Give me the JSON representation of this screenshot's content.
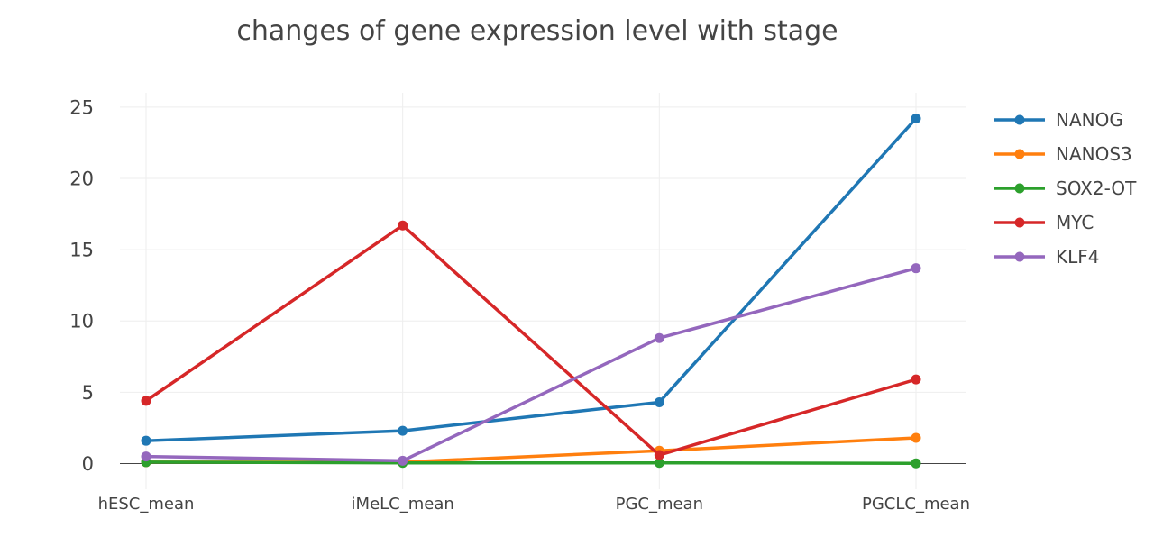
{
  "chart_data": {
    "type": "line",
    "title": "changes of gene expression level with stage",
    "xlabel": "",
    "ylabel": "",
    "categories": [
      "hESC_mean",
      "iMeLC_mean",
      "PGC_mean",
      "PGCLC_mean"
    ],
    "ylim": [
      -1.8,
      26
    ],
    "yticks": [
      0,
      5,
      10,
      15,
      20,
      25
    ],
    "grid": true,
    "legend_position": "top-right",
    "series": [
      {
        "name": "NANOG",
        "color": "#1f77b4",
        "values": [
          1.6,
          2.3,
          4.3,
          24.2
        ]
      },
      {
        "name": "NANOS3",
        "color": "#ff7f0e",
        "values": [
          0.1,
          0.1,
          0.9,
          1.8
        ]
      },
      {
        "name": "SOX2-OT",
        "color": "#2ca02c",
        "values": [
          0.1,
          0.05,
          0.05,
          0.02
        ]
      },
      {
        "name": "MYC",
        "color": "#d62728",
        "values": [
          4.4,
          16.7,
          0.6,
          5.9
        ]
      },
      {
        "name": "KLF4",
        "color": "#9467bd",
        "values": [
          0.5,
          0.2,
          8.8,
          13.7
        ]
      }
    ]
  }
}
